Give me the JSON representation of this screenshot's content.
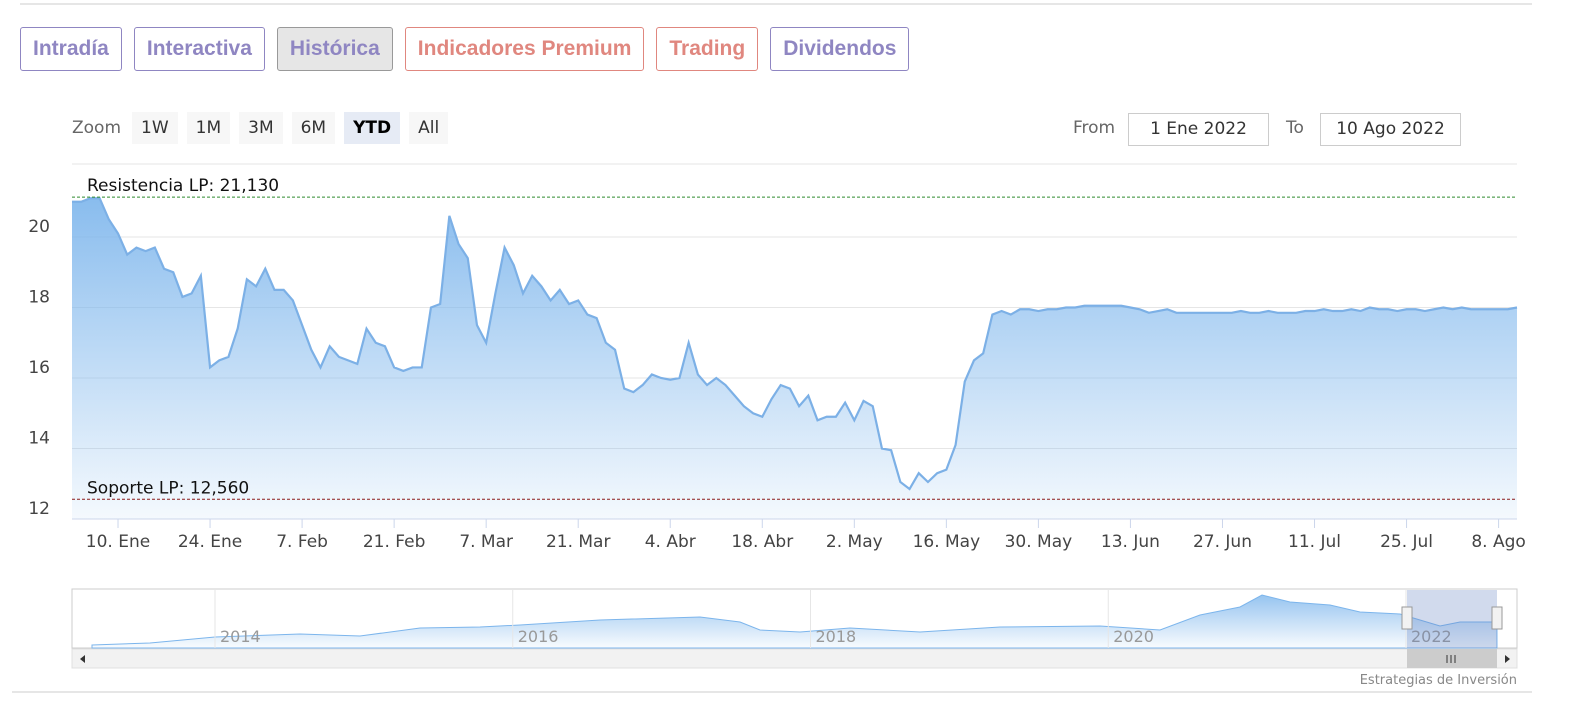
{
  "tabs": [
    {
      "label": "Intradía",
      "color": "#8f86c2"
    },
    {
      "label": "Interactiva",
      "color": "#8f86c2"
    },
    {
      "label": "Histórica",
      "color": "#8f86c2"
    },
    {
      "label": "Indicadores Premium",
      "color": "#e0877f"
    },
    {
      "label": "Trading",
      "color": "#e0877f"
    },
    {
      "label": "Dividendos",
      "color": "#8f86c2"
    }
  ],
  "selected_tab": 2,
  "range_selector": {
    "label": "Zoom",
    "buttons": [
      "1W",
      "1M",
      "3M",
      "6M",
      "YTD",
      "All"
    ],
    "selected": 4
  },
  "date_range": {
    "from_label": "From",
    "from": "1 Ene 2022",
    "to_label": "To",
    "to": "10 Ago 2022"
  },
  "chart_data": {
    "type": "area",
    "color": "#7cb0e6",
    "categories": [
      null,
      null,
      null,
      null,
      null,
      "10. Ene",
      null,
      null,
      null,
      null,
      null,
      null,
      null,
      null,
      null,
      "24. Ene",
      null,
      null,
      null,
      null,
      null,
      null,
      null,
      null,
      null,
      "7. Feb",
      null,
      null,
      null,
      null,
      null,
      null,
      null,
      null,
      null,
      "21. Feb",
      null,
      null,
      null,
      null,
      null,
      null,
      null,
      null,
      null,
      "7. Mar",
      null,
      null,
      null,
      null,
      null,
      null,
      null,
      null,
      null,
      "21. Mar",
      null,
      null,
      null,
      null,
      null,
      null,
      null,
      null,
      null,
      "4. Abr",
      null,
      null,
      null,
      null,
      null,
      null,
      null,
      null,
      null,
      "18. Abr",
      null,
      null,
      null,
      null,
      null,
      null,
      null,
      null,
      null,
      "2. May",
      null,
      null,
      null,
      null,
      null,
      null,
      null,
      null,
      null,
      "16. May",
      null,
      null,
      null,
      null,
      null,
      null,
      null,
      null,
      null,
      "30. May",
      null,
      null,
      null,
      null,
      null,
      null,
      null,
      null,
      null,
      "13. Jun",
      null,
      null,
      null,
      null,
      null,
      null,
      null,
      null,
      null,
      "27. Jun",
      null,
      null,
      null,
      null,
      null,
      null,
      null,
      null,
      null,
      "11. Jul",
      null,
      null,
      null,
      null,
      null,
      null,
      null,
      null,
      null,
      "25. Jul",
      null,
      null,
      null,
      null,
      null,
      null,
      null,
      null,
      null,
      "8. Ago",
      null,
      null
    ],
    "values": [
      21.0,
      21.0,
      21.1,
      21.1,
      20.5,
      20.1,
      19.5,
      19.7,
      19.6,
      19.7,
      19.1,
      19.0,
      18.3,
      18.4,
      18.9,
      16.3,
      16.5,
      16.6,
      17.4,
      18.8,
      18.6,
      19.1,
      18.5,
      18.5,
      18.2,
      17.5,
      16.8,
      16.3,
      16.9,
      16.6,
      16.5,
      16.4,
      17.4,
      17.0,
      16.9,
      16.3,
      16.2,
      16.3,
      16.3,
      18.0,
      18.1,
      20.6,
      19.8,
      19.4,
      17.5,
      17.0,
      18.4,
      19.7,
      19.2,
      18.4,
      18.9,
      18.6,
      18.2,
      18.5,
      18.1,
      18.2,
      17.8,
      17.7,
      17.0,
      16.8,
      15.7,
      15.6,
      15.8,
      16.1,
      16.0,
      15.95,
      16.0,
      17.0,
      16.1,
      15.8,
      16.0,
      15.8,
      15.5,
      15.2,
      15.0,
      14.9,
      15.4,
      15.8,
      15.7,
      15.2,
      15.5,
      14.8,
      14.9,
      14.9,
      15.3,
      14.8,
      15.35,
      15.2,
      14.0,
      13.95,
      13.05,
      12.85,
      13.3,
      13.05,
      13.3,
      13.4,
      14.1,
      15.9,
      16.5,
      16.7,
      17.8,
      17.9,
      17.8,
      17.95,
      17.95,
      17.9,
      17.95,
      17.95,
      18.0,
      18.0,
      18.05,
      18.05,
      18.05,
      18.05,
      18.05,
      18.0,
      17.95,
      17.85,
      17.9,
      17.95,
      17.85,
      17.85,
      17.85,
      17.85,
      17.85,
      17.85,
      17.85,
      17.9,
      17.85,
      17.85,
      17.9,
      17.85,
      17.85,
      17.85,
      17.9,
      17.9,
      17.95,
      17.9,
      17.9,
      17.95,
      17.9,
      18.0,
      17.95,
      17.95,
      17.9,
      17.95,
      17.95,
      17.9,
      17.95,
      18.0,
      17.95,
      18.0,
      17.95,
      17.95,
      17.95,
      17.95,
      17.95,
      18.0
    ],
    "ylim": [
      12,
      22
    ],
    "yticks": [
      12,
      14,
      16,
      18,
      20
    ],
    "grid": true,
    "plot_lines": [
      {
        "value": 21.13,
        "label": "Resistencia LP: 21,130",
        "color": "#2e8b2e"
      },
      {
        "value": 12.56,
        "label": "Soporte LP: 12,560",
        "color": "#8b1a1a"
      }
    ]
  },
  "navigator": {
    "labels": [
      "2014",
      "2016",
      "2018",
      "2020",
      "2022"
    ]
  },
  "credit": "Estrategias de Inversión"
}
